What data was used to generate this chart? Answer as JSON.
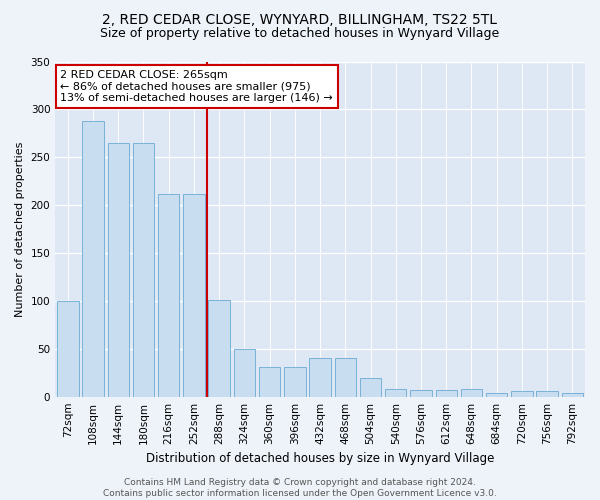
{
  "title1": "2, RED CEDAR CLOSE, WYNYARD, BILLINGHAM, TS22 5TL",
  "title2": "Size of property relative to detached houses in Wynyard Village",
  "xlabel": "Distribution of detached houses by size in Wynyard Village",
  "ylabel": "Number of detached properties",
  "categories": [
    "72sqm",
    "108sqm",
    "144sqm",
    "180sqm",
    "216sqm",
    "252sqm",
    "288sqm",
    "324sqm",
    "360sqm",
    "396sqm",
    "432sqm",
    "468sqm",
    "504sqm",
    "540sqm",
    "576sqm",
    "612sqm",
    "648sqm",
    "684sqm",
    "720sqm",
    "756sqm",
    "792sqm"
  ],
  "values": [
    100,
    288,
    265,
    265,
    212,
    212,
    101,
    50,
    31,
    31,
    40,
    40,
    20,
    8,
    7,
    7,
    8,
    4,
    6,
    6,
    4
  ],
  "bar_color": "#c9ddf0",
  "bar_edge_color": "#6aaad4",
  "vline_color": "#cc0000",
  "annotation_text": "2 RED CEDAR CLOSE: 265sqm\n← 86% of detached houses are smaller (975)\n13% of semi-detached houses are larger (146) →",
  "annotation_box_facecolor": "#ffffff",
  "annotation_box_edgecolor": "#cc0000",
  "ylim": [
    0,
    350
  ],
  "yticks": [
    0,
    50,
    100,
    150,
    200,
    250,
    300,
    350
  ],
  "bg_color": "#dde8f4",
  "grid_color": "#ffffff",
  "fig_facecolor": "#eef3fa",
  "footer": "Contains HM Land Registry data © Crown copyright and database right 2024.\nContains public sector information licensed under the Open Government Licence v3.0.",
  "title1_fontsize": 10,
  "title2_fontsize": 9,
  "ylabel_fontsize": 8,
  "xlabel_fontsize": 8.5,
  "tick_fontsize": 7.5,
  "footer_fontsize": 6.5,
  "annot_fontsize": 8
}
